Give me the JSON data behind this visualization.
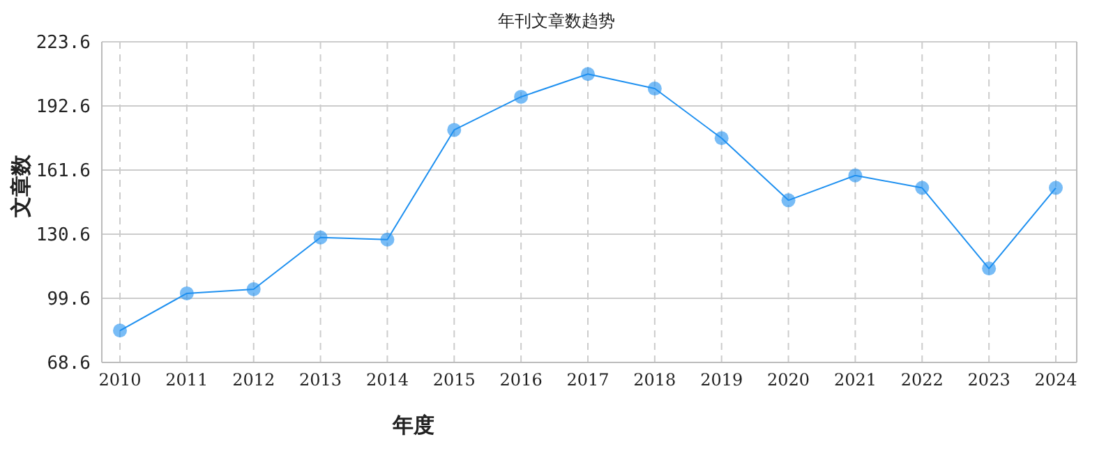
{
  "chart_data": {
    "type": "line",
    "title": "年刊文章数趋势",
    "xlabel": "年度",
    "ylabel": "文章数",
    "categories": [
      "2010",
      "2011",
      "2012",
      "2013",
      "2014",
      "2015",
      "2016",
      "2017",
      "2018",
      "2019",
      "2020",
      "2021",
      "2022",
      "2023",
      "2024"
    ],
    "series": [
      {
        "color": "#1e90f0",
        "values": [
          84,
          102,
          104,
          129,
          128,
          181,
          197,
          208,
          201,
          177,
          147,
          159,
          153,
          114,
          153
        ]
      }
    ],
    "ylim": [
      68.6,
      223.6
    ],
    "yticks": [
      68.6,
      99.6,
      130.6,
      161.6,
      192.6,
      223.6
    ],
    "grid": true,
    "marker": "circle",
    "line_style": "solid"
  }
}
